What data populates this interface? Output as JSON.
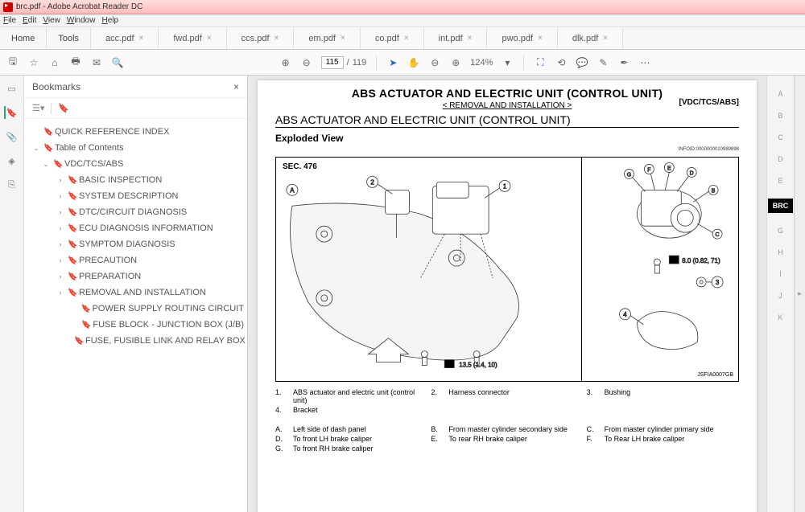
{
  "window": {
    "title": "brc.pdf - Adobe Acrobat Reader DC"
  },
  "menu": {
    "items": [
      "File",
      "Edit",
      "View",
      "Window",
      "Help"
    ]
  },
  "maintabs": {
    "fixed": [
      "Home",
      "Tools"
    ],
    "tabs": [
      "acc.pdf",
      "fwd.pdf",
      "ccs.pdf",
      "em.pdf",
      "co.pdf",
      "int.pdf",
      "pwo.pdf",
      "dlk.pdf"
    ],
    "active_hidden": "brc.pdf"
  },
  "toolbar": {
    "page_current": "115",
    "page_total": "119",
    "zoom": "124%"
  },
  "bookmarks": {
    "title": "Bookmarks",
    "items": [
      {
        "lvl": 0,
        "chev": "",
        "label": "QUICK REFERENCE INDEX"
      },
      {
        "lvl": 0,
        "chev": "v",
        "label": "Table of Contents"
      },
      {
        "lvl": 1,
        "chev": "v",
        "label": "VDC/TCS/ABS"
      },
      {
        "lvl": 2,
        "chev": ">",
        "label": "BASIC INSPECTION"
      },
      {
        "lvl": 2,
        "chev": ">",
        "label": "SYSTEM DESCRIPTION"
      },
      {
        "lvl": 2,
        "chev": ">",
        "label": "DTC/CIRCUIT DIAGNOSIS"
      },
      {
        "lvl": 2,
        "chev": ">",
        "label": "ECU DIAGNOSIS INFORMATION"
      },
      {
        "lvl": 2,
        "chev": ">",
        "label": "SYMPTOM DIAGNOSIS"
      },
      {
        "lvl": 2,
        "chev": ">",
        "label": "PRECAUTION"
      },
      {
        "lvl": 2,
        "chev": ">",
        "label": "PREPARATION"
      },
      {
        "lvl": 2,
        "chev": ">",
        "label": "REMOVAL AND INSTALLATION"
      },
      {
        "lvl": 3,
        "chev": "",
        "label": "POWER SUPPLY ROUTING CIRCUIT"
      },
      {
        "lvl": 3,
        "chev": "",
        "label": "FUSE BLOCK - JUNCTION BOX (J/B)"
      },
      {
        "lvl": 3,
        "chev": "",
        "label": "FUSE, FUSIBLE LINK AND RELAY BOX"
      }
    ]
  },
  "doc": {
    "h1": "ABS ACTUATOR AND ELECTRIC UNIT (CONTROL UNIT)",
    "sub": "< REMOVAL AND INSTALLATION >",
    "tag": "[VDC/TCS/ABS]",
    "h2": "ABS ACTUATOR AND ELECTRIC UNIT (CONTROL UNIT)",
    "h3": "Exploded View",
    "info": "INFOID:0000000010989898",
    "figure": {
      "sec": "SEC. 476",
      "torque1": "13.5 (1.4, 10)",
      "torque2": "8.0 (0.82, 71)",
      "code": "JSFIA0007GB"
    },
    "legend_num": [
      {
        "k": "1.",
        "v": "ABS actuator and electric unit (control unit)"
      },
      {
        "k": "2.",
        "v": "Harness connector"
      },
      {
        "k": "3.",
        "v": "Bushing"
      },
      {
        "k": "4.",
        "v": "Bracket"
      },
      {
        "k": "",
        "v": ""
      },
      {
        "k": "",
        "v": ""
      }
    ],
    "legend_alpha": [
      {
        "k": "A.",
        "v": "Left side of dash panel"
      },
      {
        "k": "B.",
        "v": "From master cylinder secondary side"
      },
      {
        "k": "C.",
        "v": "From master cylinder primary side"
      },
      {
        "k": "D.",
        "v": "To front LH brake caliper"
      },
      {
        "k": "E.",
        "v": "To rear RH brake caliper"
      },
      {
        "k": "F.",
        "v": "To Rear LH brake caliper"
      },
      {
        "k": "G.",
        "v": "To front RH brake caliper"
      },
      {
        "k": "",
        "v": ""
      },
      {
        "k": "",
        "v": ""
      }
    ]
  },
  "letters": {
    "items": [
      "A",
      "B",
      "C",
      "D",
      "E",
      "BRC",
      "G",
      "H",
      "I",
      "J",
      "K"
    ],
    "active": "BRC"
  }
}
